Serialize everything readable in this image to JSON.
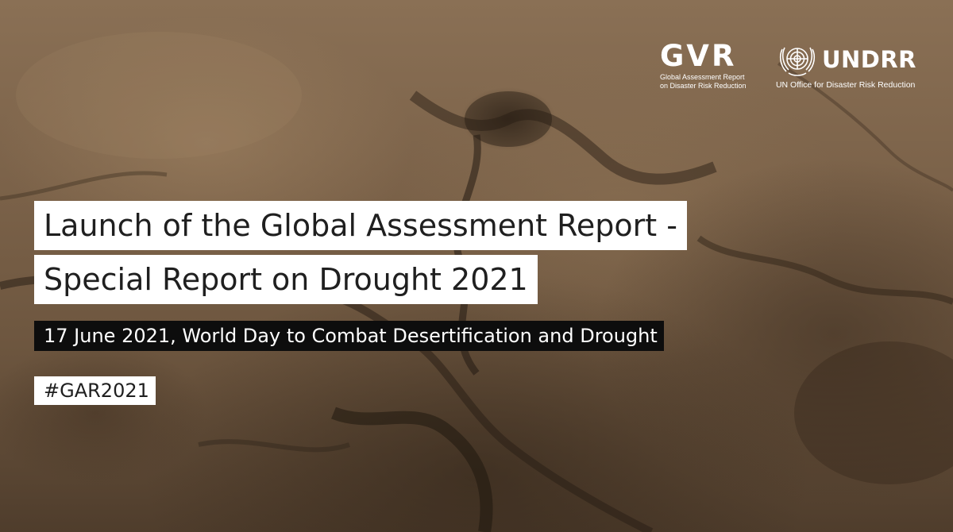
{
  "background": {
    "scene": "cracked-dry-soil",
    "colors": {
      "light": "#8a7055",
      "mid": "#6d563f",
      "dark": "#3d2e21"
    }
  },
  "logos": {
    "gar": {
      "mark": "GVR",
      "line1": "Global Assessment Report",
      "line2": "on Disaster Risk Reduction"
    },
    "undrr": {
      "emblem": "un-emblem-icon",
      "mark": "UNDRR",
      "subtitle": "UN Office for Disaster Risk Reduction"
    }
  },
  "title": {
    "line1": "Launch of the Global Assessment Report -",
    "line2": "Special Report on Drought 2021"
  },
  "subtitle": "17 June 2021, World Day to Combat Desertification and Drought",
  "hashtag": "#GAR2021",
  "colors": {
    "title_bg": "#ffffff",
    "subtitle_bg": "#0d0d0d",
    "text_dark": "#1f1f1f",
    "text_light": "#ffffff"
  }
}
